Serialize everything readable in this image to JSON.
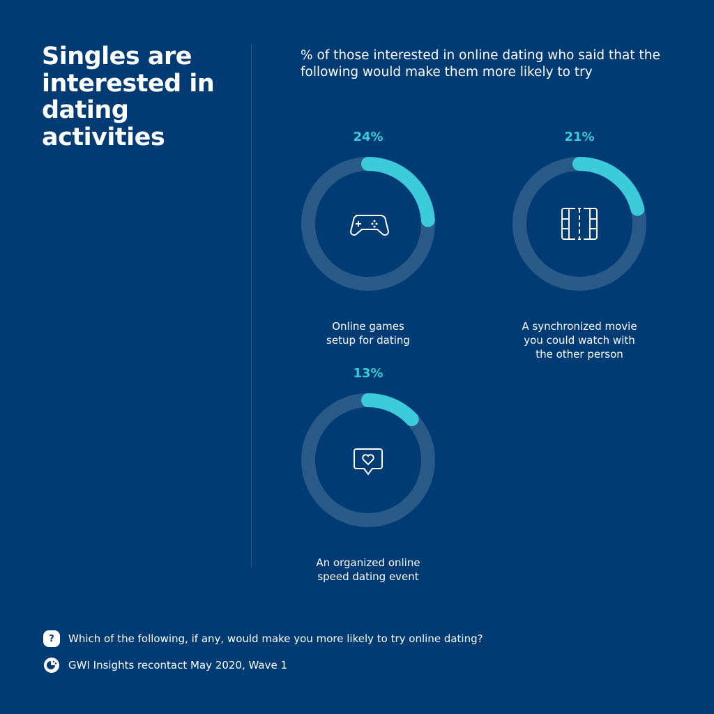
{
  "title": "Singles are interested in dating activities",
  "chart_data": {
    "type": "donut",
    "title": "% of those interested in online dating who said that the following would make them more likely to try",
    "categories": [
      "Online games setup for dating",
      "A synchronized movie you could watch with the other person",
      "An organized online speed dating event"
    ],
    "values": [
      24,
      21,
      13
    ],
    "value_labels": [
      "24%",
      "21%",
      "13%"
    ],
    "icons": [
      "gamepad-icon",
      "movie-film-icon",
      "heart-chat-icon"
    ],
    "colors": {
      "value": "#3CCBDA",
      "track": "#2A5A88",
      "background": "#003B73"
    }
  },
  "footer": {
    "question": "Which of the following, if any, would make you more likely to try online dating?",
    "source": "GWI Insights recontact May 2020, Wave 1",
    "question_icon": "question-icon",
    "source_icon": "gwi-logo-icon"
  }
}
